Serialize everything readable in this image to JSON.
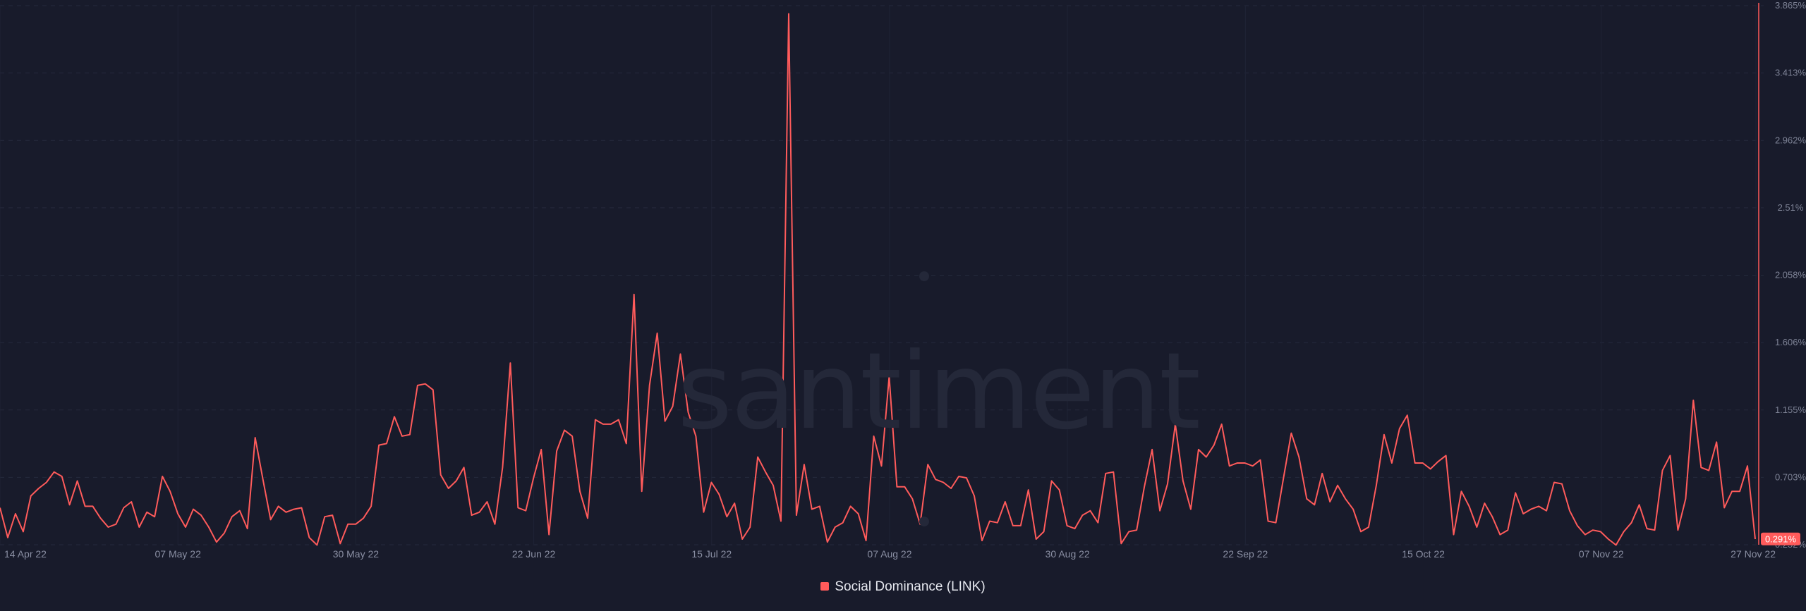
{
  "watermark": "santiment",
  "chart_data": {
    "type": "line",
    "title": "",
    "xlabel": "",
    "ylabel": "",
    "ylim": [
      0.252,
      3.865
    ],
    "y_ticks": [
      "3.865%",
      "3.413%",
      "2.962%",
      "2.51%",
      "2.058%",
      "1.606%",
      "1.155%",
      "0.703%",
      "0.252%"
    ],
    "x_ticks": [
      "14 Apr 22",
      "07 May 22",
      "30 May 22",
      "22 Jun 22",
      "15 Jul 22",
      "07 Aug 22",
      "30 Aug 22",
      "22 Sep 22",
      "15 Oct 22",
      "07 Nov 22",
      "27 Nov 22"
    ],
    "x_start": "2022-04-14",
    "x_end": "2022-11-28",
    "grid": true,
    "legend_position": "bottom-center",
    "current_value_label": "0.291%",
    "series": [
      {
        "name": "Social Dominance (LINK)",
        "color": "#ff5b5b",
        "values": [
          0.5,
          0.3,
          0.46,
          0.34,
          0.58,
          0.63,
          0.67,
          0.74,
          0.71,
          0.52,
          0.68,
          0.51,
          0.51,
          0.43,
          0.37,
          0.39,
          0.5,
          0.54,
          0.37,
          0.47,
          0.44,
          0.71,
          0.61,
          0.46,
          0.37,
          0.49,
          0.45,
          0.37,
          0.27,
          0.33,
          0.44,
          0.48,
          0.36,
          0.97,
          0.69,
          0.42,
          0.51,
          0.47,
          0.49,
          0.5,
          0.3,
          0.25,
          0.44,
          0.45,
          0.26,
          0.39,
          0.39,
          0.43,
          0.51,
          0.92,
          0.93,
          1.11,
          0.98,
          0.99,
          1.32,
          1.33,
          1.29,
          0.72,
          0.63,
          0.68,
          0.77,
          0.45,
          0.47,
          0.54,
          0.39,
          0.77,
          1.47,
          0.5,
          0.48,
          0.7,
          0.89,
          0.32,
          0.88,
          1.02,
          0.98,
          0.61,
          0.43,
          1.09,
          1.06,
          1.06,
          1.09,
          0.93,
          1.93,
          0.61,
          1.32,
          1.67,
          1.08,
          1.18,
          1.53,
          1.14,
          0.98,
          0.47,
          0.67,
          0.59,
          0.44,
          0.53,
          0.29,
          0.37,
          0.84,
          0.74,
          0.65,
          0.41,
          3.81,
          0.45,
          0.79,
          0.49,
          0.51,
          0.27,
          0.37,
          0.4,
          0.51,
          0.46,
          0.28,
          0.98,
          0.78,
          1.38,
          0.64,
          0.64,
          0.56,
          0.39,
          0.79,
          0.69,
          0.67,
          0.63,
          0.71,
          0.7,
          0.58,
          0.28,
          0.41,
          0.4,
          0.54,
          0.38,
          0.38,
          0.62,
          0.29,
          0.34,
          0.68,
          0.62,
          0.38,
          0.36,
          0.45,
          0.48,
          0.4,
          0.73,
          0.74,
          0.26,
          0.34,
          0.35,
          0.64,
          0.89,
          0.48,
          0.66,
          1.06,
          0.68,
          0.49,
          0.89,
          0.84,
          0.92,
          1.06,
          0.78,
          0.8,
          0.8,
          0.78,
          0.82,
          0.41,
          0.4,
          0.7,
          1.0,
          0.84,
          0.56,
          0.52,
          0.73,
          0.54,
          0.65,
          0.56,
          0.49,
          0.34,
          0.37,
          0.65,
          0.99,
          0.8,
          1.03,
          1.12,
          0.8,
          0.8,
          0.76,
          0.81,
          0.85,
          0.32,
          0.61,
          0.51,
          0.37,
          0.53,
          0.44,
          0.32,
          0.35,
          0.6,
          0.46,
          0.49,
          0.51,
          0.48,
          0.67,
          0.66,
          0.48,
          0.38,
          0.32,
          0.35,
          0.34,
          0.29,
          0.25,
          0.34,
          0.4,
          0.52,
          0.36,
          0.35,
          0.75,
          0.85,
          0.35,
          0.56,
          1.22,
          0.77,
          0.75,
          0.94,
          0.5,
          0.61,
          0.61,
          0.78,
          0.29
        ]
      }
    ]
  }
}
